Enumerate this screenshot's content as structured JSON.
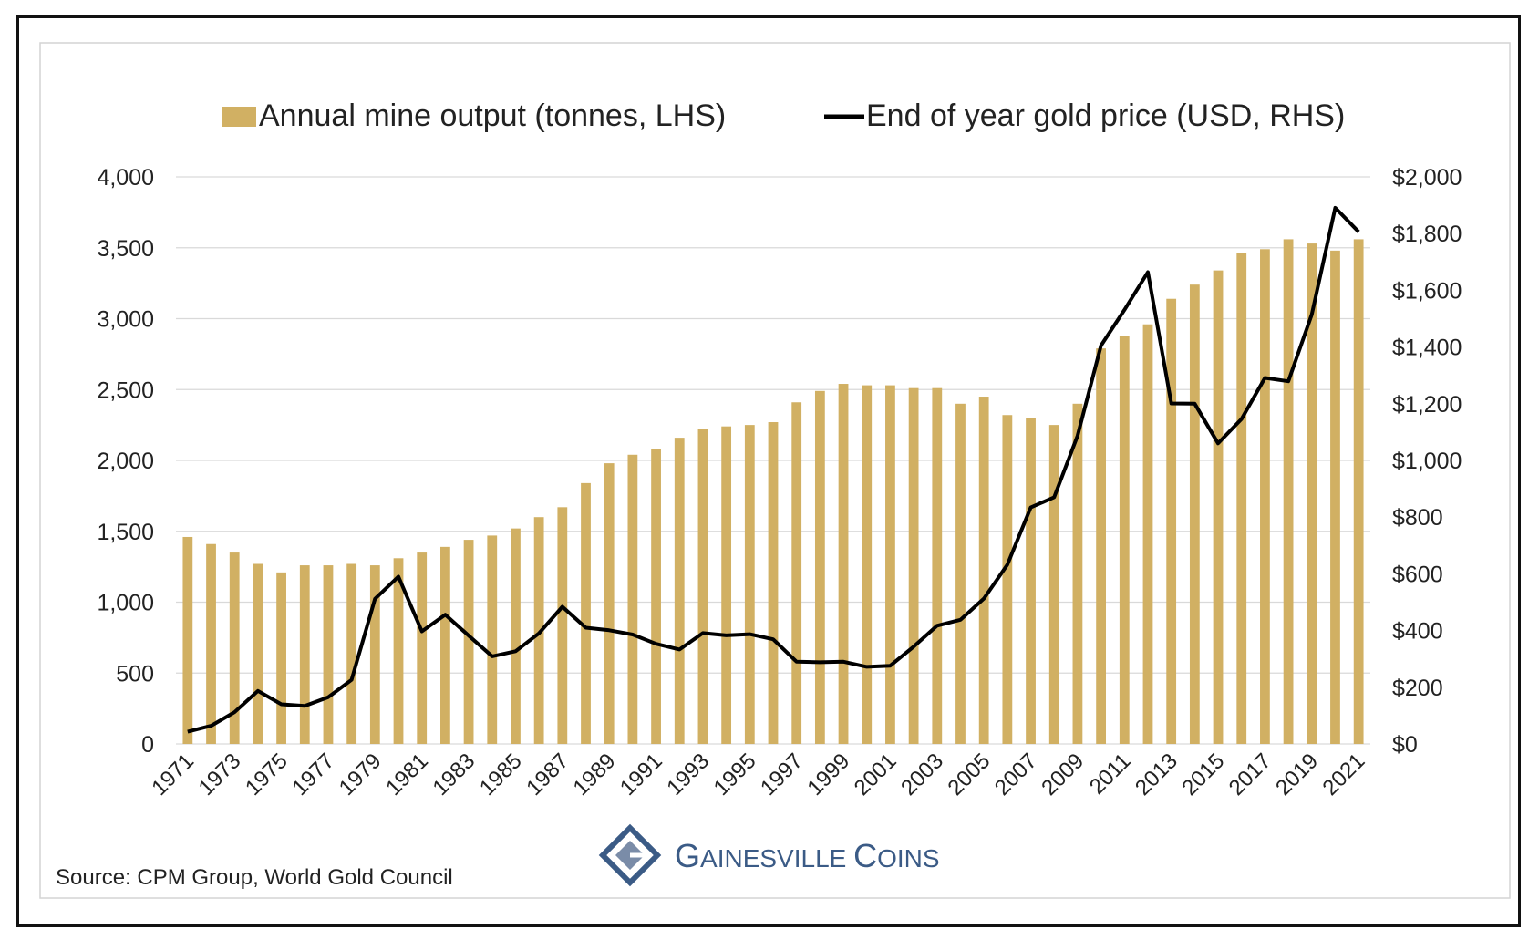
{
  "colors": {
    "bar": "#d1b063",
    "line": "#000000",
    "grid": "#d9d9d9",
    "text": "#222222",
    "logo_blue": "#3b5b86"
  },
  "chart_data": {
    "type": "bar+line",
    "title": "",
    "legend": {
      "placement": "top-center",
      "bar_label": "Annual mine output (tonnes, LHS)",
      "line_label": "End of year gold price (USD, RHS)"
    },
    "categories": [
      "1971",
      "1972",
      "1973",
      "1974",
      "1975",
      "1976",
      "1977",
      "1978",
      "1979",
      "1980",
      "1981",
      "1982",
      "1983",
      "1984",
      "1985",
      "1986",
      "1987",
      "1988",
      "1989",
      "1990",
      "1991",
      "1992",
      "1993",
      "1994",
      "1995",
      "1996",
      "1997",
      "1998",
      "1999",
      "2000",
      "2001",
      "2002",
      "2003",
      "2004",
      "2005",
      "2006",
      "2007",
      "2008",
      "2009",
      "2010",
      "2011",
      "2012",
      "2013",
      "2014",
      "2015",
      "2016",
      "2017",
      "2018",
      "2019",
      "2020",
      "2021"
    ],
    "x_tick_labels": [
      "1971",
      "1973",
      "1975",
      "1977",
      "1979",
      "1981",
      "1983",
      "1985",
      "1987",
      "1989",
      "1991",
      "1993",
      "1995",
      "1997",
      "1999",
      "2001",
      "2003",
      "2005",
      "2007",
      "2009",
      "2011",
      "2013",
      "2015",
      "2017",
      "2019",
      "2021"
    ],
    "series": [
      {
        "name": "Annual mine output (tonnes, LHS)",
        "type": "bar",
        "axis": "left",
        "values": [
          1460,
          1410,
          1350,
          1270,
          1210,
          1260,
          1260,
          1270,
          1260,
          1310,
          1350,
          1390,
          1440,
          1470,
          1520,
          1600,
          1670,
          1840,
          1980,
          2040,
          2080,
          2160,
          2220,
          2240,
          2250,
          2270,
          2410,
          2490,
          2540,
          2530,
          2530,
          2510,
          2510,
          2400,
          2450,
          2320,
          2300,
          2250,
          2400,
          2790,
          2880,
          2960,
          3140,
          3240,
          3340,
          3460,
          3490,
          3560,
          3530,
          3480,
          3560
        ]
      },
      {
        "name": "End of year gold price (USD, RHS)",
        "type": "line",
        "axis": "right",
        "values": [
          43,
          64,
          112,
          187,
          140,
          134,
          165,
          226,
          512,
          590,
          397,
          456,
          382,
          309,
          327,
          390,
          484,
          410,
          401,
          386,
          353,
          333,
          391,
          383,
          387,
          369,
          290,
          288,
          290,
          272,
          276,
          343,
          417,
          438,
          513,
          632,
          834,
          870,
          1087,
          1405,
          1531,
          1664,
          1201,
          1200,
          1060,
          1146,
          1291,
          1279,
          1515,
          1891,
          1806
        ]
      }
    ],
    "y_left": {
      "min": 0,
      "max": 4000,
      "tick_labels": [
        "0",
        "500",
        "1,000",
        "1,500",
        "2,000",
        "2,500",
        "3,000",
        "3,500",
        "4,000"
      ]
    },
    "y_right": {
      "min": 0,
      "max": 2000,
      "tick_labels": [
        "$0",
        "$200",
        "$400",
        "$600",
        "$800",
        "$1,000",
        "$1,200",
        "$1,400",
        "$1,600",
        "$1,800",
        "$2,000"
      ]
    },
    "grid": true
  },
  "footer": {
    "source": "Source: CPM Group, World Gold Council"
  },
  "logo": {
    "text_big1": "G",
    "text_small1": "AINESVILLE ",
    "text_big2": "C",
    "text_small2": "OINS"
  }
}
